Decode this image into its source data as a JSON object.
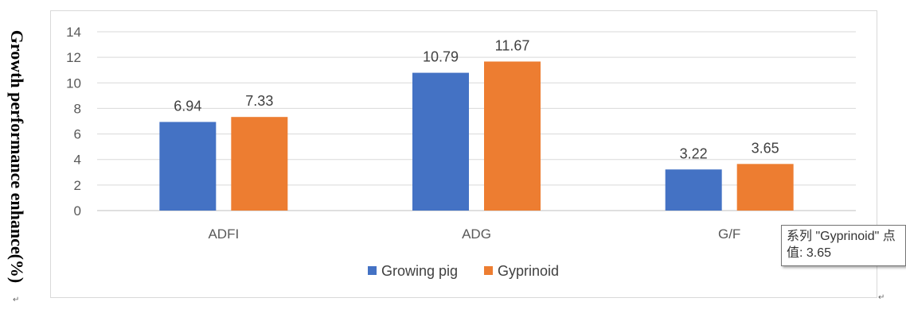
{
  "chart_data": {
    "type": "bar",
    "title": "",
    "xlabel": "",
    "ylabel": "Growth performance enhance(%)",
    "ylim": [
      0,
      14
    ],
    "yticks": [
      0,
      2,
      4,
      6,
      8,
      10,
      12,
      14
    ],
    "grid": true,
    "legend_position": "bottom",
    "categories": [
      "ADFI",
      "ADG",
      "G/F"
    ],
    "series": [
      {
        "name": "Growing pig",
        "color": "#4472c4",
        "values": [
          6.94,
          10.79,
          3.22
        ]
      },
      {
        "name": "Gyprinoid",
        "color": "#ed7d31",
        "values": [
          7.33,
          11.67,
          3.65
        ]
      }
    ],
    "data_labels": [
      [
        "6.94",
        "10.79",
        "3.22"
      ],
      [
        "7.33",
        "11.67",
        "3.65"
      ]
    ]
  },
  "tooltip": {
    "line1": "系列 \"Gyprinoid\" 点",
    "line2": "值: 3.65"
  },
  "marks": {
    "return_glyph": "↵"
  }
}
